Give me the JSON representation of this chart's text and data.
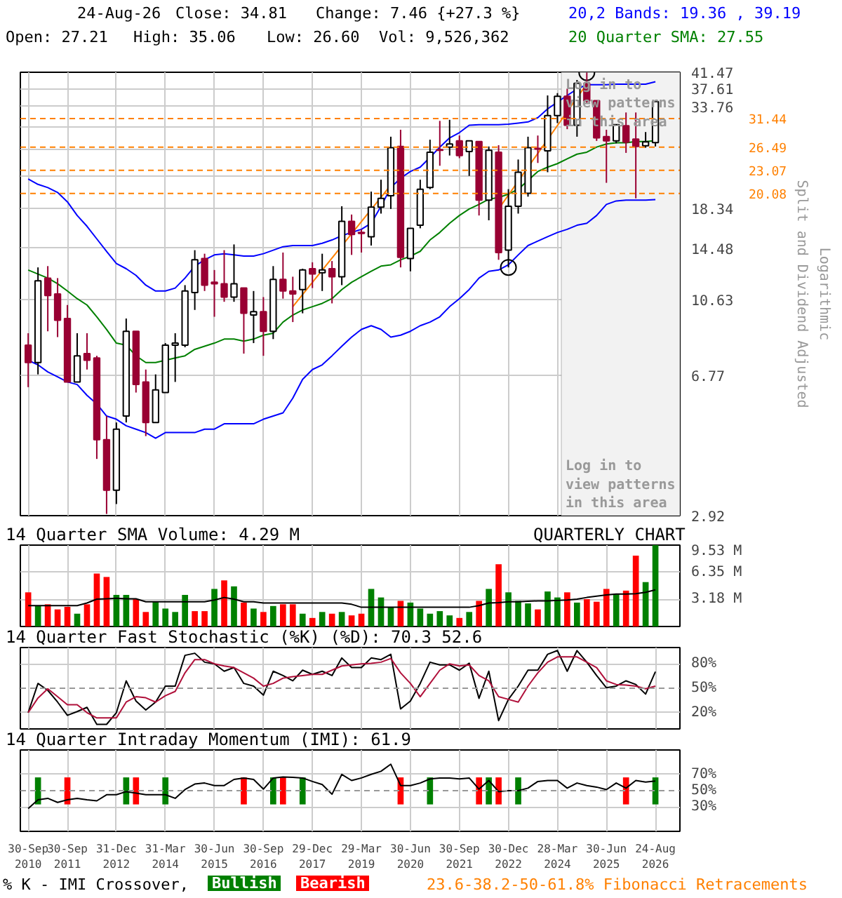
{
  "chart_data": [
    {
      "type": "candlestick",
      "colors": [
        "#990033",
        "#ffffff",
        "#990033",
        "#990033",
        "#990033",
        "#ffffff",
        "#990033",
        "#990033",
        "#990033",
        "#ffffff",
        "#ffffff",
        "#990033",
        "#990033",
        "#ffffff",
        "#ffffff",
        "#ffffff",
        "#ffffff",
        "#ffffff",
        "#990033",
        "#990033",
        "#990033",
        "#ffffff",
        "#990033",
        "#ffffff",
        "#990033",
        "#ffffff",
        "#990033",
        "#990033",
        "#ffffff",
        "#990033",
        "#ffffff",
        "#990033",
        "#ffffff",
        "#990033",
        "#990033",
        "#ffffff",
        "#ffffff",
        "#ffffff",
        "#990033",
        "#ffffff",
        "#ffffff",
        "#ffffff",
        "#990033",
        "#ffffff",
        "#990033",
        "#ffffff",
        "#990033",
        "#ffffff",
        "#990033",
        "#ffffff",
        "#ffffff",
        "#ffffff",
        "#990033",
        "#ffffff",
        "#ffffff",
        "#990033",
        "#ffffff",
        "#990033",
        "#990033",
        "#990033",
        "#ffffff",
        "#990033",
        "#990033",
        "#ffffff",
        "#ffffff"
      ],
      "categories": [
        "30-Sep\n2010",
        null,
        null,
        null,
        "30-Sep\n2011",
        null,
        null,
        null,
        null,
        "31-Dec\n2012",
        null,
        null,
        null,
        null,
        "31-Mar\n2014",
        null,
        null,
        null,
        null,
        "30-Jun\n2015",
        null,
        null,
        null,
        null,
        "30-Sep\n2016",
        null,
        null,
        null,
        null,
        "29-Dec\n2017",
        null,
        null,
        null,
        null,
        "29-Mar\n2019",
        null,
        null,
        null,
        null,
        "30-Jun\n2020",
        null,
        null,
        null,
        null,
        "30-Sep\n2021",
        null,
        null,
        null,
        null,
        "30-Dec\n2022",
        null,
        null,
        null,
        null,
        "28-Mar\n2024",
        null,
        null,
        null,
        null,
        "30-Jun\n2025",
        null,
        null,
        null,
        null,
        "24-Aug\n2026"
      ],
      "tick_labels": "y",
      "log": true,
      "ylim": [
        2.92,
        41.47
      ],
      "yticks": [
        2.92,
        6.77,
        10.63,
        14.48,
        18.34,
        {
          "value": 22.19,
          "label": null
        },
        {
          "value": 26.05,
          "label": null
        },
        {
          "value": 29.9,
          "label": null
        },
        33.76,
        37.61,
        41.47
      ],
      "grid": true,
      "ylabel": "Split and Dividend Adjusted",
      "annotations": [
        "Log in to view patterns in this area",
        "Log in to view patterns in this area",
        "Logarithmic",
        "24-Aug-26",
        "Close: 34.81",
        "Change: 7.46 {+27.3 %}",
        "Open: 27.21",
        "High: 35.06",
        "Low: 26.60",
        "Vol: 9,526,362"
      ],
      "ohlc": [
        [
          8.1,
          8.7,
          6.3,
          7.3
        ],
        [
          7.3,
          12.9,
          6.8,
          11.9
        ],
        [
          12.1,
          13.0,
          8.8,
          10.9
        ],
        [
          11.0,
          12.1,
          8.5,
          9.4
        ],
        [
          9.5,
          10.3,
          6.5,
          6.5
        ],
        [
          6.5,
          8.7,
          6.5,
          7.6
        ],
        [
          7.7,
          8.7,
          7.0,
          7.4
        ],
        [
          7.5,
          7.6,
          4.1,
          4.6
        ],
        [
          4.6,
          5.3,
          2.95,
          3.4
        ],
        [
          3.4,
          5.1,
          3.13,
          4.9
        ],
        [
          5.3,
          9.5,
          5.1,
          8.8
        ],
        [
          8.8,
          8.8,
          6.1,
          6.4
        ],
        [
          6.5,
          7.0,
          4.7,
          5.1
        ],
        [
          5.1,
          6.8,
          5.1,
          6.2
        ],
        [
          6.1,
          8.2,
          6.1,
          8.1
        ],
        [
          8.1,
          8.7,
          6.5,
          8.2
        ],
        [
          8.1,
          11.6,
          8.0,
          11.2
        ],
        [
          11.1,
          14.3,
          10.0,
          13.5
        ],
        [
          13.6,
          14.0,
          11.2,
          11.6
        ],
        [
          11.8,
          12.7,
          9.6,
          11.7
        ],
        [
          11.7,
          14.3,
          10.5,
          10.8
        ],
        [
          10.8,
          14.8,
          10.5,
          11.7
        ],
        [
          11.4,
          11.4,
          7.7,
          9.8
        ],
        [
          9.7,
          11.2,
          8.2,
          9.9
        ],
        [
          9.9,
          10.8,
          7.6,
          8.8
        ],
        [
          8.8,
          13.0,
          8.4,
          12.0
        ],
        [
          12.0,
          14.1,
          10.7,
          11.2
        ],
        [
          11.2,
          12.2,
          9.3,
          11.0
        ],
        [
          11.3,
          12.8,
          9.8,
          12.7
        ],
        [
          12.8,
          13.3,
          11.4,
          12.4
        ],
        [
          12.5,
          14.0,
          11.2,
          12.7
        ],
        [
          12.8,
          13.4,
          10.4,
          12.2
        ],
        [
          12.2,
          18.6,
          11.6,
          17.0
        ],
        [
          17.0,
          17.7,
          13.9,
          15.7
        ],
        [
          15.9,
          16.2,
          14.1,
          15.8
        ],
        [
          15.5,
          20.3,
          14.7,
          18.5
        ],
        [
          18.5,
          21.8,
          17.8,
          19.5
        ],
        [
          19.8,
          28.2,
          18.3,
          26.4
        ],
        [
          26.6,
          29.4,
          12.9,
          13.7
        ],
        [
          13.6,
          16.3,
          12.6,
          16.3
        ],
        [
          16.6,
          21.8,
          16.3,
          20.6
        ],
        [
          20.8,
          27.7,
          20.6,
          25.7
        ],
        [
          26.1,
          31.0,
          23.7,
          26.0
        ],
        [
          26.5,
          31.2,
          25.2,
          27.0
        ],
        [
          27.5,
          28.4,
          24.8,
          25.2
        ],
        [
          25.8,
          27.5,
          22.3,
          27.5
        ],
        [
          27.4,
          27.4,
          17.6,
          19.3
        ],
        [
          19.3,
          26.6,
          17.1,
          26.0
        ],
        [
          25.7,
          26.8,
          13.5,
          14.1
        ],
        [
          14.3,
          20.6,
          12.9,
          18.6
        ],
        [
          18.6,
          24.6,
          17.8,
          22.8
        ],
        [
          20.1,
          28.2,
          19.7,
          26.4
        ],
        [
          26.3,
          28.4,
          24.1,
          26.2
        ],
        [
          25.9,
          36.1,
          22.8,
          32.0
        ],
        [
          32.0,
          36.6,
          30.6,
          35.9
        ],
        [
          35.9,
          37.6,
          29.5,
          30.2
        ],
        [
          30.2,
          39.6,
          28.2,
          38.8
        ],
        [
          38.8,
          41.4,
          34.4,
          34.9
        ],
        [
          35.0,
          35.0,
          27.5,
          28.0
        ],
        [
          28.2,
          29.4,
          21.4,
          27.5
        ],
        [
          27.5,
          30.3,
          27.1,
          30.3
        ],
        [
          30.1,
          32.6,
          25.6,
          27.3
        ],
        [
          27.8,
          32.6,
          19.5,
          26.6
        ],
        [
          26.7,
          29.0,
          26.4,
          27.35
        ],
        [
          27.21,
          35.06,
          26.6,
          34.81
        ]
      ],
      "series": [
        {
          "name": "20,2 Bands: 19.36 , 39.19",
          "type": "line",
          "color": "#0000ff",
          "values": [
            21.9,
            21.2,
            20.8,
            20.2,
            19.1,
            17.6,
            16.5,
            15.3,
            14.2,
            13.2,
            12.8,
            12.3,
            11.6,
            11.2,
            11.2,
            11.4,
            12.1,
            13.0,
            13.5,
            13.9,
            14.0,
            13.9,
            13.8,
            13.8,
            14.0,
            14.3,
            14.6,
            14.7,
            14.7,
            14.7,
            14.9,
            15.2,
            15.6,
            15.9,
            16.2,
            16.8,
            18.6,
            20.8,
            22.0,
            22.9,
            23.5,
            24.9,
            26.5,
            28.0,
            28.9,
            30.2,
            30.3,
            30.3,
            30.3,
            30.4,
            30.6,
            30.8,
            31.6,
            33.3,
            34.7,
            36.1,
            37.5,
            38.5,
            38.5,
            38.5,
            38.6,
            38.6,
            38.6,
            38.6,
            39.19
          ]
        },
        {
          "type": "line",
          "color": "#0000ff",
          "values": [
            7.4,
            7.2,
            6.9,
            6.7,
            6.5,
            6.4,
            6.0,
            5.7,
            5.3,
            5.2,
            5.0,
            4.9,
            4.8,
            4.64,
            4.8,
            4.8,
            4.8,
            4.8,
            4.9,
            4.9,
            5.06,
            5.06,
            5.06,
            5.06,
            5.2,
            5.3,
            5.4,
            5.9,
            6.6,
            7.0,
            7.2,
            7.6,
            8.05,
            8.5,
            8.9,
            9.1,
            8.9,
            8.5,
            8.6,
            8.8,
            9.1,
            9.3,
            9.6,
            10.2,
            10.7,
            11.3,
            12.1,
            12.6,
            12.7,
            13.1,
            13.9,
            14.7,
            15.1,
            15.5,
            15.9,
            16.2,
            16.6,
            16.8,
            17.6,
            18.8,
            19.2,
            19.3,
            19.3,
            19.3,
            19.36
          ]
        },
        {
          "name": "20 Quarter SMA: 27.55",
          "type": "line",
          "color": "#008000",
          "values": [
            12.7,
            12.4,
            12.1,
            11.7,
            11.2,
            10.7,
            10.3,
            9.6,
            8.9,
            8.2,
            8.1,
            7.6,
            7.3,
            7.3,
            7.4,
            7.5,
            7.6,
            7.9,
            8.05,
            8.2,
            8.4,
            8.4,
            8.3,
            8.4,
            8.6,
            8.7,
            9.3,
            9.7,
            10.0,
            10.2,
            10.4,
            10.7,
            11.3,
            11.8,
            12.2,
            12.6,
            13.0,
            13.1,
            13.5,
            13.8,
            14.2,
            15.2,
            15.9,
            16.8,
            17.6,
            18.3,
            18.8,
            19.4,
            19.6,
            20.0,
            20.6,
            21.7,
            22.9,
            23.5,
            24.0,
            24.7,
            25.4,
            25.7,
            26.5,
            27.0,
            27.2,
            27.2,
            27.4,
            27.4,
            27.55
          ]
        },
        {
          "type": "line",
          "color": "#ff8000",
          "values": [
            null,
            null,
            null,
            null,
            null,
            null,
            null,
            null,
            null,
            null,
            null,
            null,
            null,
            null,
            null,
            null,
            null,
            null,
            null,
            null,
            null,
            null,
            null,
            null,
            null,
            null,
            null,
            10.2,
            null,
            null,
            null,
            null,
            null,
            null,
            null,
            null,
            null,
            21.1,
            null,
            null,
            null,
            null,
            null,
            null,
            null,
            null,
            null,
            null,
            null,
            null,
            null,
            null,
            null,
            null,
            null,
            null,
            null,
            null,
            null,
            null,
            null,
            null,
            null,
            null,
            null
          ]
        },
        {
          "type": "line",
          "color": "#ff8000",
          "values": [
            null,
            null,
            null,
            null,
            null,
            null,
            null,
            null,
            null,
            null,
            null,
            null,
            null,
            null,
            null,
            null,
            null,
            null,
            null,
            null,
            null,
            null,
            null,
            null,
            null,
            null,
            null,
            null,
            null,
            null,
            null,
            null,
            null,
            null,
            null,
            null,
            null,
            null,
            null,
            null,
            null,
            null,
            null,
            null,
            null,
            null,
            null,
            null,
            18.3,
            null,
            null,
            null,
            null,
            null,
            null,
            null,
            null,
            38.7,
            null,
            null,
            null,
            null,
            null,
            null,
            null
          ]
        },
        {
          "type": "scatter",
          "marker": "circle",
          "color": "#000000",
          "values": [
            null,
            null,
            null,
            null,
            null,
            null,
            null,
            null,
            null,
            null,
            null,
            null,
            null,
            null,
            null,
            null,
            null,
            null,
            null,
            null,
            null,
            null,
            null,
            null,
            null,
            null,
            null,
            null,
            null,
            null,
            null,
            null,
            null,
            null,
            null,
            null,
            null,
            null,
            null,
            null,
            null,
            null,
            null,
            null,
            null,
            null,
            null,
            null,
            null,
            12.9,
            null,
            null,
            null,
            null,
            null,
            null,
            null,
            41.4,
            null,
            null,
            null,
            null,
            null,
            null,
            null
          ]
        }
      ],
      "ref_lines": [
        {
          "axis": "y",
          "value": 31.44,
          "label": "31.44",
          "color": "#ff8000",
          "line_style": "dashed"
        },
        {
          "axis": "y",
          "value": 26.49,
          "label": "26.49",
          "color": "#ff8000",
          "line_style": "dashed"
        },
        {
          "axis": "y",
          "value": 23.07,
          "label": "23.07",
          "color": "#ff8000",
          "line_style": "dashed"
        },
        {
          "axis": "y",
          "value": 20.08,
          "label": "20.08",
          "color": "#ff8000",
          "line_style": "dashed"
        }
      ]
    },
    {
      "type": "bar",
      "categories": [
        "30-Sep\n2010",
        null,
        null,
        null,
        "30-Sep\n2011",
        null,
        null,
        null,
        null,
        "31-Dec\n2012",
        null,
        null,
        null,
        null,
        "31-Mar\n2014",
        null,
        null,
        null,
        null,
        "30-Jun\n2015",
        null,
        null,
        null,
        null,
        "30-Sep\n2016",
        null,
        null,
        null,
        null,
        "29-Dec\n2017",
        null,
        null,
        null,
        null,
        "29-Mar\n2019",
        null,
        null,
        null,
        null,
        "30-Jun\n2020",
        null,
        null,
        null,
        null,
        "30-Sep\n2021",
        null,
        null,
        null,
        null,
        "30-Dec\n2022",
        null,
        null,
        null,
        null,
        "28-Mar\n2024",
        null,
        null,
        null,
        null,
        "30-Jun\n2025",
        null,
        null,
        null,
        null,
        "24-Aug\n2026"
      ],
      "tick_labels": "y",
      "ylim": [
        0,
        9.53
      ],
      "yticks": [
        {
          "value": 3.18,
          "label": "3.18 M"
        },
        {
          "value": 6.35,
          "label": "6.35 M"
        },
        {
          "value": 9.53,
          "label": "9.53 M"
        }
      ],
      "grid": true,
      "annotations": [
        "QUARTERLY CHART"
      ],
      "series": [
        {
          "type": "bar",
          "colors": [
            "#ff0000",
            "#008000",
            "#ff0000",
            "#ff0000",
            "#ff0000",
            "#008000",
            "#ff0000",
            "#ff0000",
            "#ff0000",
            "#008000",
            "#008000",
            "#ff0000",
            "#ff0000",
            "#008000",
            "#008000",
            "#008000",
            "#008000",
            "#ff0000",
            "#ff0000",
            "#008000",
            "#ff0000",
            "#008000",
            "#ff0000",
            "#008000",
            "#ff0000",
            "#008000",
            "#ff0000",
            "#ff0000",
            "#008000",
            "#ff0000",
            "#008000",
            "#ff0000",
            "#008000",
            "#ff0000",
            "#ff0000",
            "#008000",
            "#008000",
            "#008000",
            "#ff0000",
            "#008000",
            "#008000",
            "#008000",
            "#008000",
            "#008000",
            "#ff0000",
            "#008000",
            "#ff0000",
            "#008000",
            "#ff0000",
            "#008000",
            "#008000",
            "#008000",
            "#ff0000",
            "#008000",
            "#008000",
            "#ff0000",
            "#008000",
            "#ff0000",
            "#ff0000",
            "#ff0000",
            "#008000",
            "#ff0000",
            "#ff0000",
            "#008000",
            "#008000"
          ],
          "values": [
            4.0,
            2.4,
            2.6,
            2.0,
            2.3,
            1.5,
            2.6,
            6.2,
            5.8,
            3.7,
            3.7,
            3.2,
            1.7,
            2.9,
            2.1,
            1.7,
            3.7,
            1.8,
            1.8,
            4.4,
            5.4,
            4.7,
            2.8,
            2.1,
            1.7,
            2.4,
            2.6,
            2.6,
            1.5,
            1.0,
            1.7,
            1.5,
            1.7,
            1.3,
            1.5,
            4.4,
            3.4,
            2.3,
            3.0,
            2.8,
            2.1,
            1.5,
            1.8,
            1.3,
            1.0,
            1.7,
            3.0,
            4.4,
            7.3,
            4.0,
            3.0,
            2.7,
            2.0,
            4.1,
            3.4,
            4.0,
            2.8,
            3.2,
            2.9,
            4.4,
            3.8,
            4.2,
            8.3,
            5.2,
            9.53
          ]
        },
        {
          "name": "14 Quarter SMA Volume: 4.29 M",
          "type": "line",
          "color": "#000000",
          "values": [
            2.45,
            2.45,
            2.45,
            2.45,
            2.45,
            2.45,
            2.75,
            3.2,
            3.25,
            3.3,
            3.25,
            3.25,
            2.9,
            2.9,
            2.9,
            2.9,
            2.9,
            2.9,
            2.9,
            3.1,
            3.4,
            3.2,
            2.9,
            2.9,
            2.75,
            2.75,
            2.75,
            2.75,
            2.75,
            2.75,
            2.75,
            2.75,
            2.75,
            2.6,
            2.25,
            2.25,
            2.25,
            2.25,
            2.25,
            2.25,
            2.25,
            2.25,
            2.25,
            2.25,
            2.25,
            2.25,
            2.45,
            2.75,
            2.8,
            2.9,
            2.9,
            2.95,
            3.0,
            3.0,
            3.05,
            3.1,
            3.2,
            3.4,
            3.55,
            3.7,
            3.8,
            3.8,
            3.85,
            4.0,
            4.29
          ]
        }
      ]
    },
    {
      "type": "line",
      "title": "14 Quarter Fast Stochastic (%K) (%D): 70.3  52.6",
      "categories": [
        "30-Sep\n2010",
        null,
        null,
        null,
        "30-Sep\n2011",
        null,
        null,
        null,
        null,
        "31-Dec\n2012",
        null,
        null,
        null,
        null,
        "31-Mar\n2014",
        null,
        null,
        null,
        null,
        "30-Jun\n2015",
        null,
        null,
        null,
        null,
        "30-Sep\n2016",
        null,
        null,
        null,
        null,
        "29-Dec\n2017",
        null,
        null,
        null,
        null,
        "29-Mar\n2019",
        null,
        null,
        null,
        null,
        "30-Jun\n2020",
        null,
        null,
        null,
        null,
        "30-Sep\n2021",
        null,
        null,
        null,
        null,
        "30-Dec\n2022",
        null,
        null,
        null,
        null,
        "28-Mar\n2024",
        null,
        null,
        null,
        null,
        "30-Jun\n2025",
        null,
        null,
        null,
        null,
        "24-Aug\n2026"
      ],
      "tick_labels": "y",
      "ylim": [
        0,
        100
      ],
      "yticks": [
        {
          "value": 20,
          "label": "20%"
        },
        {
          "value": 50,
          "label": "50%"
        },
        {
          "value": 80,
          "label": "80%"
        }
      ],
      "grid": true,
      "ref_lines": [
        {
          "axis": "y",
          "value": 50,
          "label": null,
          "color": "#999999",
          "line_style": "dashed"
        }
      ],
      "series": [
        {
          "type": "line",
          "color": "#000000",
          "values": [
            20.0,
            55.9,
            47.4,
            33.0,
            16.7,
            21.3,
            26.5,
            5.6,
            5.6,
            20.0,
            59.1,
            34.3,
            23.2,
            33.0,
            52.6,
            52.6,
            90.4,
            93.0,
            82.0,
            80.0,
            70.9,
            75.4,
            55.9,
            52.6,
            41.5,
            70.9,
            65.6,
            59.1,
            72.2,
            67.0,
            70.9,
            65.6,
            87.2,
            75.4,
            75.4,
            87.2,
            85.2,
            91.7,
            24.6,
            34.3,
            55.9,
            82.0,
            78.7,
            78.7,
            72.2,
            80.7,
            37.6,
            70.9,
            10.2,
            36.3,
            52.6,
            72.2,
            72.2,
            91.7,
            96.3,
            70.9,
            96.3,
            82.0,
            65.6,
            50.6,
            52.6,
            59.1,
            54.6,
            42.8,
            70.3
          ]
        },
        {
          "type": "line",
          "color": "#b0103a",
          "values": [
            20.0,
            38.0,
            49.3,
            39.6,
            29.8,
            29.8,
            20.0,
            13.5,
            13.5,
            13.5,
            33.0,
            39.6,
            38.3,
            33.0,
            40.9,
            46.1,
            68.9,
            85.2,
            85.2,
            80.0,
            77.4,
            75.4,
            68.9,
            62.4,
            52.6,
            55.9,
            62.4,
            64.3,
            65.6,
            67.0,
            67.0,
            72.2,
            77.4,
            78.7,
            80.0,
            80.7,
            82.0,
            86.5,
            68.9,
            55.9,
            39.6,
            55.9,
            72.2,
            80.0,
            77.4,
            78.7,
            65.6,
            59.1,
            39.6,
            36.3,
            33.0,
            52.6,
            68.9,
            82.0,
            88.5,
            88.5,
            88.5,
            82.0,
            75.4,
            59.1,
            54.6,
            53.9,
            52.6,
            49.3,
            52.6
          ]
        }
      ]
    },
    {
      "type": "line",
      "title": "14 Quarter Intraday Momentum (IMI): 61.9",
      "categories": [
        "30-Sep\n2010",
        null,
        null,
        null,
        "30-Sep\n2011",
        null,
        null,
        null,
        null,
        "31-Dec\n2012",
        null,
        null,
        null,
        null,
        "31-Mar\n2014",
        null,
        null,
        null,
        null,
        "30-Jun\n2015",
        null,
        null,
        null,
        null,
        "30-Sep\n2016",
        null,
        null,
        null,
        null,
        "29-Dec\n2017",
        null,
        null,
        null,
        null,
        "29-Mar\n2019",
        null,
        null,
        null,
        null,
        "30-Jun\n2020",
        null,
        null,
        null,
        null,
        "30-Sep\n2021",
        null,
        null,
        null,
        null,
        "30-Dec\n2022",
        null,
        null,
        null,
        null,
        "28-Mar\n2024",
        null,
        null,
        null,
        null,
        "30-Jun\n2025",
        null,
        null,
        null,
        null,
        "24-Aug\n2026"
      ],
      "ylim": [
        0,
        100
      ],
      "yticks": [
        {
          "value": 30,
          "label": "30%"
        },
        {
          "value": 50,
          "label": "50%"
        },
        {
          "value": 70,
          "label": "70%"
        }
      ],
      "grid": true,
      "legend": "bottom",
      "legend_title": "% K - IMI Crossover,",
      "annotations": [
        "23.6-38.2-50-61.8% Fibonacci Retracements"
      ],
      "ref_lines": [
        {
          "axis": "y",
          "value": 50,
          "label": null,
          "color": "#999999",
          "line_style": "dashed"
        }
      ],
      "series": [
        {
          "name": "Bullish",
          "type": "bar",
          "color": "#008000",
          "base": [
            null,
            33.1,
            null,
            null,
            null,
            null,
            null,
            null,
            null,
            null,
            33.1,
            null,
            null,
            null,
            33.1,
            null,
            null,
            null,
            null,
            null,
            null,
            null,
            null,
            null,
            null,
            33.1,
            null,
            null,
            33.1,
            null,
            null,
            null,
            null,
            null,
            null,
            null,
            null,
            null,
            null,
            null,
            null,
            33.1,
            null,
            null,
            null,
            null,
            null,
            33.1,
            null,
            null,
            33.1,
            null,
            null,
            null,
            null,
            null,
            null,
            null,
            null,
            null,
            null,
            null,
            null,
            null,
            33.1
          ],
          "values": [
            null,
            33.2,
            null,
            null,
            null,
            null,
            null,
            null,
            null,
            null,
            33.2,
            null,
            null,
            null,
            33.2,
            null,
            null,
            null,
            null,
            null,
            null,
            null,
            null,
            null,
            null,
            33.2,
            null,
            null,
            33.2,
            null,
            null,
            null,
            null,
            null,
            null,
            null,
            null,
            null,
            null,
            null,
            null,
            33.2,
            null,
            null,
            null,
            null,
            null,
            33.2,
            null,
            null,
            33.2,
            null,
            null,
            null,
            null,
            null,
            null,
            null,
            null,
            null,
            null,
            null,
            null,
            null,
            33.2
          ]
        },
        {
          "name": "Bearish",
          "type": "bar",
          "color": "#ff0000",
          "base": [
            null,
            null,
            null,
            null,
            33.1,
            null,
            null,
            null,
            null,
            null,
            null,
            33.1,
            null,
            null,
            null,
            null,
            null,
            null,
            null,
            null,
            null,
            null,
            33.1,
            null,
            null,
            null,
            33.1,
            null,
            null,
            null,
            null,
            null,
            null,
            null,
            null,
            null,
            null,
            null,
            33.1,
            null,
            null,
            null,
            null,
            null,
            null,
            null,
            33.1,
            null,
            33.1,
            null,
            null,
            null,
            null,
            null,
            null,
            null,
            null,
            null,
            null,
            null,
            null,
            33.1,
            null,
            null,
            null
          ],
          "values": [
            null,
            null,
            null,
            null,
            33.2,
            null,
            null,
            null,
            null,
            null,
            null,
            33.2,
            null,
            null,
            null,
            null,
            null,
            null,
            null,
            null,
            null,
            null,
            33.2,
            null,
            null,
            null,
            33.2,
            null,
            null,
            null,
            null,
            null,
            null,
            null,
            null,
            null,
            null,
            null,
            33.2,
            null,
            null,
            null,
            null,
            null,
            null,
            null,
            33.2,
            null,
            33.2,
            null,
            null,
            null,
            null,
            null,
            null,
            null,
            null,
            null,
            null,
            null,
            null,
            33.2,
            null,
            null,
            null
          ]
        },
        {
          "type": "line",
          "color": "#000000",
          "values": [
            28.1,
            38.8,
            40.6,
            35.6,
            38.8,
            40.6,
            38.8,
            37.5,
            45.0,
            45.0,
            48.8,
            46.9,
            45.0,
            45.0,
            45.0,
            40.6,
            51.3,
            58.1,
            59.4,
            56.3,
            56.3,
            63.8,
            65.6,
            63.8,
            51.9,
            65.6,
            66.9,
            66.3,
            65.6,
            61.3,
            57.5,
            45.6,
            70.0,
            62.5,
            65.6,
            70.0,
            73.8,
            82.5,
            56.3,
            56.3,
            59.4,
            64.4,
            65.6,
            65.6,
            64.4,
            65.6,
            51.9,
            62.5,
            48.8,
            50.0,
            50.0,
            53.1,
            61.3,
            62.5,
            62.5,
            53.1,
            59.4,
            56.3,
            54.4,
            51.3,
            59.4,
            53.1,
            62.5,
            60.6,
            61.9
          ]
        }
      ]
    }
  ]
}
